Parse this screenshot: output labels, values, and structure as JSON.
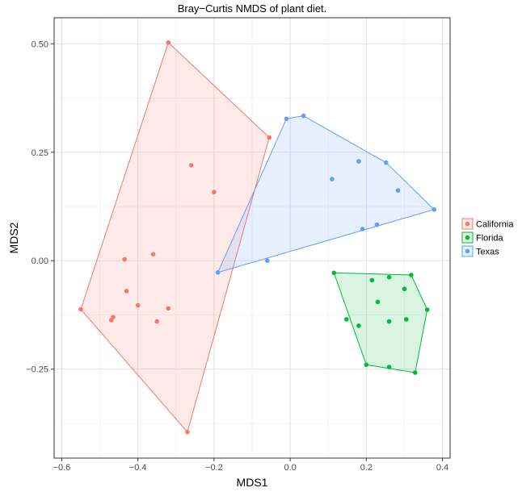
{
  "chart_data": {
    "type": "scatter",
    "title": "Bray−Curtis NMDS of plant diet.",
    "xlabel": "MDS1",
    "ylabel": "MDS2",
    "xlim": [
      -0.62,
      0.42
    ],
    "ylim": [
      -0.455,
      0.56
    ],
    "x_ticks": [
      -0.6,
      -0.4,
      -0.2,
      0.0,
      0.2,
      0.4
    ],
    "x_tick_labels": [
      "−0.6",
      "−0.4",
      "−0.2",
      "0.0",
      "0.2",
      "0.4"
    ],
    "y_ticks": [
      -0.25,
      0.0,
      0.25,
      0.5
    ],
    "y_tick_labels": [
      "−0.25",
      "0.00",
      "0.25",
      "0.50"
    ],
    "x_minor_ticks": [
      -0.5,
      -0.3,
      -0.1,
      0.1,
      0.3
    ],
    "y_minor_ticks": [
      -0.375,
      -0.125,
      0.125,
      0.375
    ],
    "grid": true,
    "legend_position": "right",
    "series": [
      {
        "name": "California",
        "color": "#F8766D",
        "points": [
          [
            -0.32,
            0.503
          ],
          [
            -0.26,
            0.22
          ],
          [
            -0.2,
            0.158
          ],
          [
            -0.055,
            0.284
          ],
          [
            -0.435,
            0.003
          ],
          [
            -0.36,
            0.015
          ],
          [
            -0.43,
            -0.07
          ],
          [
            -0.4,
            -0.103
          ],
          [
            -0.32,
            -0.11
          ],
          [
            -0.35,
            -0.14
          ],
          [
            -0.465,
            -0.13
          ],
          [
            -0.47,
            -0.137
          ],
          [
            -0.55,
            -0.112
          ],
          [
            -0.27,
            -0.395
          ]
        ],
        "hull": [
          [
            -0.32,
            0.503
          ],
          [
            -0.055,
            0.284
          ],
          [
            -0.27,
            -0.395
          ],
          [
            -0.55,
            -0.112
          ]
        ]
      },
      {
        "name": "Florida",
        "color": "#00BA38",
        "points": [
          [
            0.115,
            -0.028
          ],
          [
            0.215,
            -0.045
          ],
          [
            0.26,
            -0.038
          ],
          [
            0.318,
            -0.033
          ],
          [
            0.3,
            -0.065
          ],
          [
            0.23,
            -0.095
          ],
          [
            0.36,
            -0.113
          ],
          [
            0.148,
            -0.135
          ],
          [
            0.18,
            -0.15
          ],
          [
            0.26,
            -0.14
          ],
          [
            0.305,
            -0.135
          ],
          [
            0.2,
            -0.24
          ],
          [
            0.26,
            -0.245
          ],
          [
            0.328,
            -0.258
          ]
        ],
        "hull": [
          [
            0.115,
            -0.028
          ],
          [
            0.318,
            -0.033
          ],
          [
            0.36,
            -0.113
          ],
          [
            0.328,
            -0.258
          ],
          [
            0.2,
            -0.24
          ]
        ]
      },
      {
        "name": "Texas",
        "color": "#619CFF",
        "points": [
          [
            -0.01,
            0.327
          ],
          [
            0.035,
            0.334
          ],
          [
            0.18,
            0.229
          ],
          [
            0.252,
            0.226
          ],
          [
            0.11,
            0.188
          ],
          [
            0.283,
            0.162
          ],
          [
            0.378,
            0.118
          ],
          [
            0.228,
            0.083
          ],
          [
            0.19,
            0.073
          ],
          [
            -0.06,
            0.0
          ],
          [
            -0.19,
            -0.027
          ]
        ],
        "hull": [
          [
            -0.01,
            0.327
          ],
          [
            0.035,
            0.334
          ],
          [
            0.252,
            0.226
          ],
          [
            0.378,
            0.118
          ],
          [
            -0.19,
            -0.027
          ]
        ]
      }
    ]
  }
}
